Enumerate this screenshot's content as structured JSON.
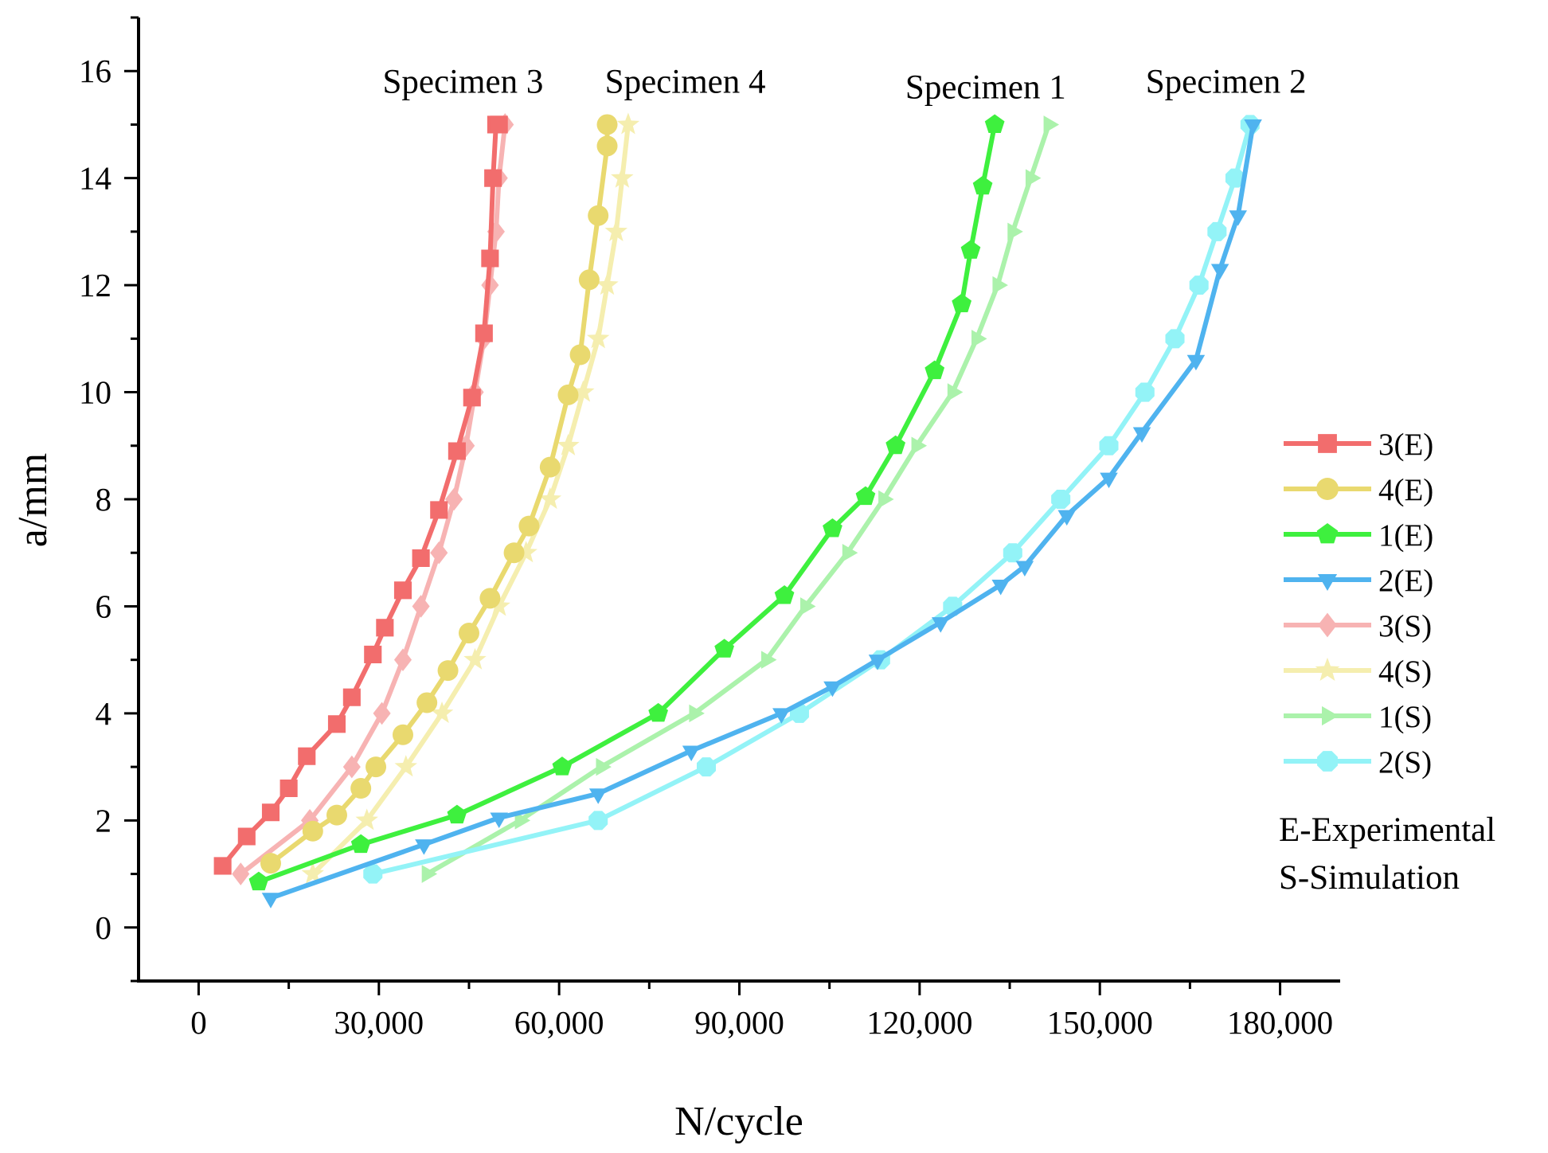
{
  "chart_data": {
    "type": "line",
    "title": "",
    "xlabel": "N/cycle",
    "ylabel": "a/mm",
    "xlim": [
      -10000,
      190000
    ],
    "ylim": [
      -1,
      17
    ],
    "xticks": [
      0,
      30000,
      60000,
      90000,
      120000,
      150000,
      180000
    ],
    "xtick_labels": [
      "0",
      "30,000",
      "60,000",
      "90,000",
      "120,000",
      "150,000",
      "180,000"
    ],
    "yticks": [
      0,
      2,
      4,
      6,
      8,
      10,
      12,
      14,
      16
    ],
    "ytick_labels": [
      "0",
      "2",
      "4",
      "6",
      "8",
      "10",
      "12",
      "14",
      "16"
    ],
    "grid": false,
    "legend_position": "right",
    "annotations": [
      {
        "text": "Specimen 3",
        "x": 44000,
        "y": 15.8
      },
      {
        "text": "Specimen 4",
        "x": 81000,
        "y": 15.8
      },
      {
        "text": "Specimen 1",
        "x": 131000,
        "y": 15.7
      },
      {
        "text": "Specimen 2",
        "x": 171000,
        "y": 15.8
      }
    ],
    "notes": [
      "E-Experimental",
      "S-Simulation"
    ],
    "series": [
      {
        "name": "3(E)",
        "color": "#f26d6d",
        "marker": "square",
        "x": [
          4000,
          8000,
          12000,
          15000,
          18000,
          23000,
          25500,
          29000,
          31000,
          34000,
          37000,
          40000,
          43000,
          45500,
          47500,
          48500,
          49000,
          49500,
          50000
        ],
        "y": [
          1.15,
          1.7,
          2.15,
          2.6,
          3.2,
          3.8,
          4.3,
          5.1,
          5.6,
          6.3,
          6.9,
          7.8,
          8.9,
          9.9,
          11.1,
          12.5,
          14.0,
          15.0,
          15.0
        ]
      },
      {
        "name": "4(E)",
        "color": "#e9d96f",
        "marker": "circle",
        "x": [
          12000,
          19000,
          23000,
          27000,
          29500,
          34000,
          38000,
          41500,
          45000,
          48500,
          52500,
          55000,
          58500,
          61500,
          63500,
          65000,
          66500,
          68000,
          68000
        ],
        "y": [
          1.2,
          1.8,
          2.1,
          2.6,
          3.0,
          3.6,
          4.2,
          4.8,
          5.5,
          6.15,
          7.0,
          7.5,
          8.6,
          9.95,
          10.7,
          12.1,
          13.3,
          14.6,
          15.0
        ]
      },
      {
        "name": "1(E)",
        "color": "#3ef03e",
        "marker": "pentagon",
        "x": [
          10000,
          27000,
          43000,
          60500,
          76500,
          87500,
          97500,
          105500,
          111000,
          116000,
          122500,
          127000,
          128500,
          130500,
          132500
        ],
        "y": [
          0.85,
          1.55,
          2.1,
          3.0,
          4.0,
          5.2,
          6.2,
          7.45,
          8.05,
          9.0,
          10.4,
          11.65,
          12.65,
          13.85,
          15.0
        ]
      },
      {
        "name": "2(E)",
        "color": "#4fb3ef",
        "marker": "triangle-down",
        "x": [
          12000,
          37500,
          50000,
          66500,
          82000,
          97000,
          105500,
          113000,
          123500,
          133500,
          137500,
          144500,
          151500,
          157000,
          166000,
          170000,
          173000,
          175500
        ],
        "y": [
          0.55,
          1.55,
          2.05,
          2.5,
          3.3,
          4.0,
          4.5,
          5.0,
          5.7,
          6.4,
          6.75,
          7.7,
          8.4,
          9.25,
          10.6,
          12.3,
          13.3,
          15.0
        ]
      },
      {
        "name": "3(S)",
        "color": "#f7b3b3",
        "marker": "diamond",
        "x": [
          7000,
          18500,
          25500,
          30500,
          34000,
          37000,
          40000,
          42500,
          44500,
          46000,
          47500,
          48500,
          49500,
          50000,
          51000
        ],
        "y": [
          1.0,
          2.0,
          3.0,
          4.0,
          5.0,
          6.0,
          7.0,
          8.0,
          9.0,
          10.0,
          11.0,
          12.0,
          13.0,
          14.0,
          15.0
        ]
      },
      {
        "name": "4(S)",
        "color": "#f5eeaf",
        "marker": "star",
        "x": [
          19000,
          28000,
          34500,
          40500,
          46000,
          50000,
          54500,
          58500,
          61500,
          64000,
          66500,
          68000,
          69500,
          70500,
          71500
        ],
        "y": [
          1.0,
          2.0,
          3.0,
          4.0,
          5.0,
          6.0,
          7.0,
          8.0,
          9.0,
          10.0,
          11.0,
          12.0,
          13.0,
          14.0,
          15.0
        ]
      },
      {
        "name": "1(S)",
        "color": "#abf2ab",
        "marker": "triangle-right",
        "x": [
          38000,
          53500,
          67000,
          82500,
          94500,
          101000,
          108000,
          114000,
          119500,
          125500,
          129500,
          133000,
          135500,
          138500,
          141500
        ],
        "y": [
          1.0,
          2.0,
          3.0,
          4.0,
          5.0,
          6.0,
          7.0,
          8.0,
          9.0,
          10.0,
          11.0,
          12.0,
          13.0,
          14.0,
          15.0
        ]
      },
      {
        "name": "2(S)",
        "color": "#93f3f7",
        "marker": "octagon",
        "x": [
          29000,
          66500,
          84500,
          100000,
          113500,
          125500,
          135500,
          143500,
          151500,
          157500,
          162500,
          166500,
          169500,
          172500,
          175000
        ],
        "y": [
          1.0,
          2.0,
          3.0,
          4.0,
          5.0,
          6.0,
          7.0,
          8.0,
          9.0,
          10.0,
          11.0,
          12.0,
          13.0,
          14.0,
          15.0
        ]
      }
    ]
  }
}
